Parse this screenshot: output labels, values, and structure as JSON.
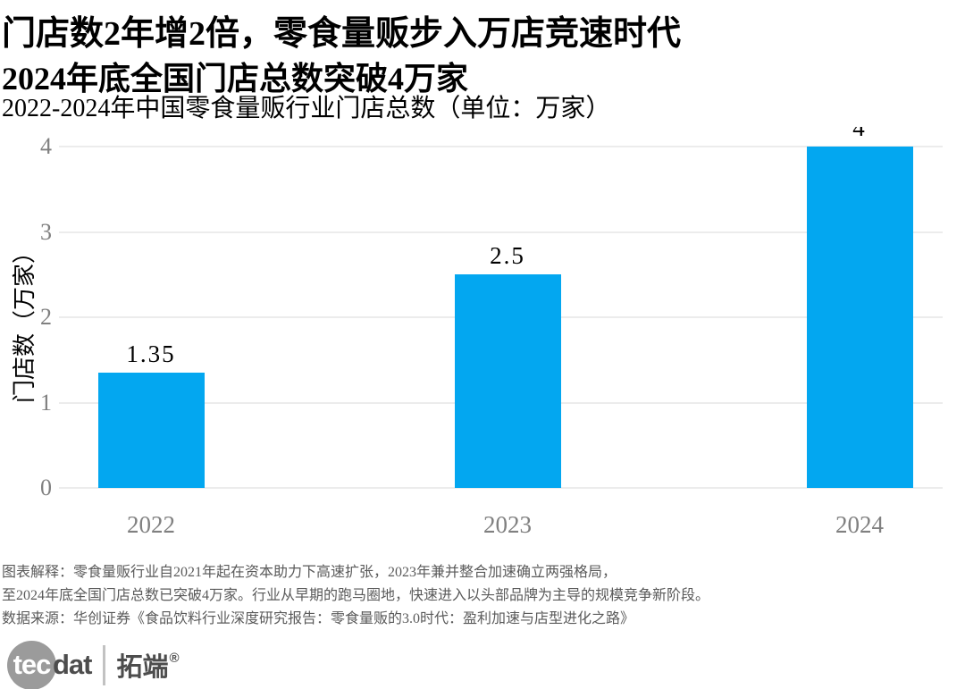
{
  "header": {
    "title_line1": "门店数2年增2倍，零食量贩步入万店竞速时代",
    "title_line2": "2024年底全国门店总数突破4万家",
    "subtitle": "2022-2024年中国零食量贩行业门店总数（单位：万家）"
  },
  "chart_data": {
    "type": "bar",
    "categories": [
      "2022",
      "2023",
      "2024"
    ],
    "values": [
      1.35,
      2.5,
      4
    ],
    "value_labels": [
      "1.35",
      "2.5",
      "4"
    ],
    "title": "2022-2024年中国零食量贩行业门店总数（单位：万家）",
    "xlabel": "",
    "ylabel": "门店数（万家）",
    "ylim": [
      0,
      4
    ],
    "yticks": [
      0,
      1,
      2,
      3,
      4
    ],
    "grid": "horizontal",
    "legend": "none",
    "bar_color": "#03a7f0"
  },
  "colors": {
    "bar": "#03a7f0",
    "gridline": "#ececec",
    "tick_text": "#808080",
    "title_text": "#000000",
    "footer_text": "#5a5a5a"
  },
  "footer": {
    "line1": "图表解释：零食量贩行业自2021年起在资本助力下高速扩张，2023年兼并整合加速确立两强格局，",
    "line2": "至2024年底全国门店总数已突破4万家。行业从早期的跑马圈地，快速进入以头部品牌为主导的规模竞争新阶段。",
    "line3": "数据来源：华创证券《食品饮料行业深度研究报告：零食量贩的3.0时代：盈利加速与店型进化之路》"
  },
  "logo": {
    "circle_text": "tec",
    "suffix_text": "dat",
    "cn_text": "拓端",
    "registered_mark": "®"
  }
}
